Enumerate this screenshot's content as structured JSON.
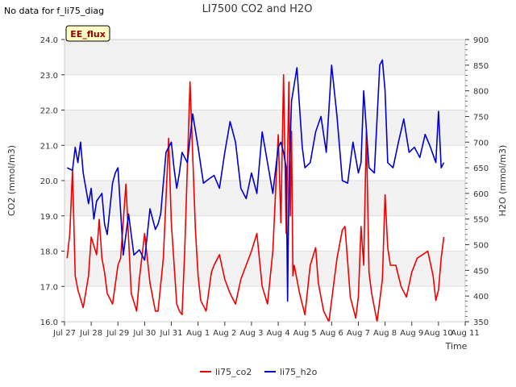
{
  "corner_note": "No data for f_li75_diag",
  "chart_data": {
    "type": "line",
    "title": "LI7500 CO2 and H2O",
    "badge": "EE_flux",
    "xlabel": "Time",
    "ylabel_left": "CO2 (mmol/m3)",
    "ylabel_right": "H2O (mmol/m3)",
    "ylim_left": [
      16.0,
      24.0
    ],
    "ylim_right": [
      350,
      900
    ],
    "xlim_days": [
      0,
      15
    ],
    "left_ticks": [
      "16.0",
      "17.0",
      "18.0",
      "19.0",
      "20.0",
      "21.0",
      "22.0",
      "23.0",
      "24.0"
    ],
    "right_ticks": [
      "350",
      "400",
      "450",
      "500",
      "550",
      "600",
      "650",
      "700",
      "750",
      "800",
      "850",
      "900"
    ],
    "x_ticks": [
      "Jul 27",
      "Jul 28",
      "Jul 29",
      "Jul 30",
      "Jul 31",
      "Aug 1",
      "Aug 2",
      "Aug 3",
      "Aug 4",
      "Aug 5",
      "Aug 6",
      "Aug 7",
      "Aug 8",
      "Aug 9",
      "Aug 10",
      "Aug 11"
    ],
    "series": [
      {
        "name": "li75_co2",
        "axis": "left",
        "color": "#ee0000",
        "x": [
          0.1,
          0.2,
          0.3,
          0.4,
          0.5,
          0.7,
          0.9,
          1.0,
          1.2,
          1.3,
          1.4,
          1.5,
          1.6,
          1.8,
          2.0,
          2.1,
          2.3,
          2.5,
          2.7,
          2.8,
          3.0,
          3.2,
          3.4,
          3.5,
          3.7,
          3.9,
          4.0,
          4.2,
          4.3,
          4.4,
          4.5,
          4.7,
          4.9,
          5.0,
          5.1,
          5.3,
          5.5,
          5.6,
          5.8,
          6.0,
          6.2,
          6.4,
          6.6,
          6.8,
          7.0,
          7.2,
          7.4,
          7.6,
          7.8,
          8.0,
          8.1,
          8.2,
          8.3,
          8.4,
          8.45,
          8.5,
          8.55,
          8.6,
          8.8,
          9.0,
          9.2,
          9.4,
          9.5,
          9.7,
          9.9,
          10.0,
          10.2,
          10.4,
          10.5,
          10.7,
          10.9,
          11.0,
          11.1,
          11.2,
          11.3,
          11.4,
          11.5,
          11.7,
          11.9,
          12.0,
          12.1,
          12.2,
          12.4,
          12.6,
          12.8,
          13.0,
          13.2,
          13.4,
          13.6,
          13.8,
          13.9,
          14.0,
          14.1,
          14.2
        ],
        "values": [
          17.8,
          18.5,
          20.3,
          17.3,
          16.9,
          16.4,
          17.3,
          18.4,
          17.9,
          18.9,
          17.8,
          17.4,
          16.8,
          16.5,
          17.6,
          17.8,
          19.9,
          16.8,
          16.3,
          17.2,
          18.5,
          17.1,
          16.3,
          16.3,
          17.8,
          21.2,
          18.8,
          16.5,
          16.3,
          16.2,
          18.0,
          22.8,
          18.6,
          17.3,
          16.6,
          16.3,
          17.4,
          17.6,
          17.9,
          17.2,
          16.8,
          16.5,
          17.2,
          17.6,
          18.0,
          18.5,
          17.0,
          16.5,
          18.0,
          21.3,
          18.8,
          23.0,
          18.5,
          22.8,
          19.0,
          21.4,
          17.3,
          17.6,
          16.8,
          16.2,
          17.6,
          18.1,
          17.1,
          16.3,
          16.0,
          16.6,
          17.8,
          18.6,
          18.7,
          16.7,
          16.1,
          16.7,
          18.7,
          17.6,
          21.4,
          17.4,
          16.8,
          16.0,
          17.2,
          19.6,
          18.1,
          17.6,
          17.6,
          17.0,
          16.7,
          17.4,
          17.8,
          17.9,
          18.0,
          17.3,
          16.6,
          16.9,
          17.8,
          18.4
        ]
      },
      {
        "name": "li75_h2o",
        "axis": "right",
        "color": "#0000cc",
        "x": [
          0.1,
          0.3,
          0.4,
          0.5,
          0.6,
          0.7,
          0.9,
          1.0,
          1.1,
          1.2,
          1.4,
          1.5,
          1.6,
          1.8,
          1.9,
          2.0,
          2.2,
          2.4,
          2.6,
          2.8,
          3.0,
          3.2,
          3.4,
          3.5,
          3.6,
          3.8,
          4.0,
          4.1,
          4.2,
          4.3,
          4.4,
          4.6,
          4.8,
          5.0,
          5.2,
          5.4,
          5.6,
          5.8,
          6.0,
          6.2,
          6.4,
          6.6,
          6.8,
          7.0,
          7.2,
          7.4,
          7.6,
          7.8,
          8.0,
          8.1,
          8.2,
          8.3,
          8.35,
          8.4,
          8.5,
          8.7,
          8.9,
          9.0,
          9.2,
          9.4,
          9.6,
          9.8,
          10.0,
          10.2,
          10.4,
          10.6,
          10.8,
          11.0,
          11.1,
          11.2,
          11.4,
          11.6,
          11.8,
          11.9,
          12.0,
          12.1,
          12.3,
          12.5,
          12.7,
          12.9,
          13.1,
          13.3,
          13.5,
          13.7,
          13.9,
          14.0,
          14.1,
          14.2
        ],
        "values": [
          650,
          645,
          690,
          660,
          700,
          640,
          580,
          610,
          550,
          585,
          600,
          540,
          520,
          620,
          640,
          650,
          480,
          560,
          480,
          490,
          470,
          570,
          530,
          540,
          560,
          680,
          700,
          650,
          610,
          640,
          680,
          660,
          755,
          690,
          620,
          628,
          635,
          610,
          680,
          740,
          700,
          610,
          590,
          640,
          600,
          720,
          660,
          600,
          690,
          700,
          680,
          650,
          390,
          620,
          780,
          845,
          690,
          650,
          660,
          720,
          750,
          680,
          850,
          750,
          625,
          620,
          700,
          640,
          660,
          800,
          650,
          640,
          850,
          860,
          800,
          660,
          650,
          700,
          745,
          680,
          690,
          670,
          715,
          690,
          660,
          760,
          650,
          660
        ]
      }
    ],
    "legend": [
      "li75_co2",
      "li75_h2o"
    ],
    "legend_position": "bottom-center"
  }
}
